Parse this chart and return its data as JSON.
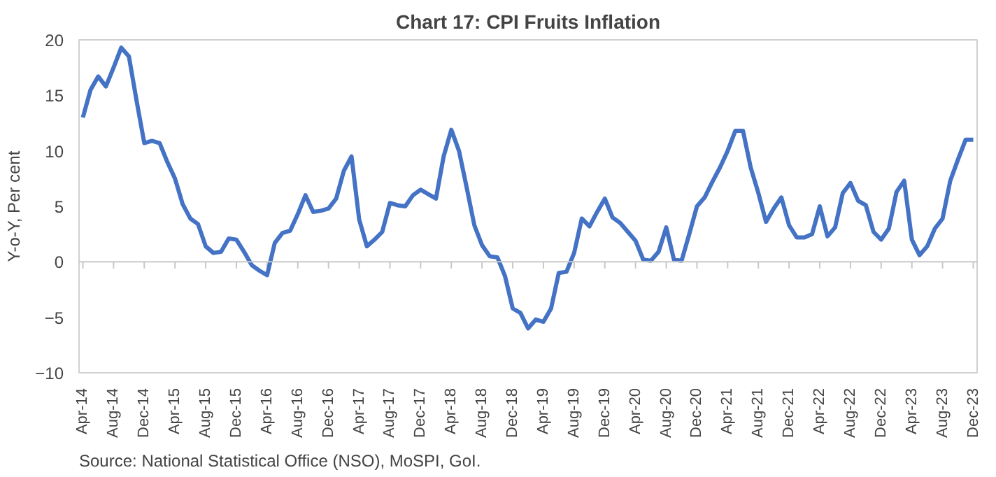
{
  "chart_data": {
    "type": "line",
    "title": "Chart 17: CPI Fruits Inflation",
    "ylabel": "Y-o-Y, Per cent",
    "categories": [
      "Apr-14",
      null,
      null,
      null,
      "Aug-14",
      null,
      null,
      null,
      "Dec-14",
      null,
      null,
      null,
      "Apr-15",
      null,
      null,
      null,
      "Aug-15",
      null,
      null,
      null,
      "Dec-15",
      null,
      null,
      null,
      "Apr-16",
      null,
      null,
      null,
      "Aug-16",
      null,
      null,
      null,
      "Dec-16",
      null,
      null,
      null,
      "Apr-17",
      null,
      null,
      null,
      "Aug-17",
      null,
      null,
      null,
      "Dec-17",
      null,
      null,
      null,
      "Apr-18",
      null,
      null,
      null,
      "Aug-18",
      null,
      null,
      null,
      "Dec-18",
      null,
      null,
      null,
      "Apr-19",
      null,
      null,
      null,
      "Aug-19",
      null,
      null,
      null,
      "Dec-19",
      null,
      null,
      null,
      "Apr-20",
      null,
      null,
      null,
      "Aug-20",
      null,
      null,
      null,
      "Dec-20",
      null,
      null,
      null,
      "Apr-21",
      null,
      null,
      null,
      "Aug-21",
      null,
      null,
      null,
      "Dec-21",
      null,
      null,
      null,
      "Apr-22",
      null,
      null,
      null,
      "Aug-22",
      null,
      null,
      null,
      "Dec-22",
      null,
      null,
      null,
      "Apr-23",
      null,
      null,
      null,
      "Aug-23",
      null,
      null,
      null,
      "Dec-23"
    ],
    "series": [
      {
        "color": "#4472c4",
        "values": [
          13,
          15.5,
          16.7,
          15.8,
          17.5,
          19.3,
          18.5,
          14.5,
          10.7,
          10.9,
          10.7,
          9,
          7.5,
          5.2,
          3.9,
          3.4,
          1.4,
          0.8,
          0.9,
          2.1,
          2.0,
          0.9,
          -0.3,
          -0.8,
          -1.2,
          1.7,
          2.6,
          2.8,
          4.3,
          6.0,
          4.5,
          4.6,
          4.8,
          5.7,
          8.2,
          9.5,
          3.8,
          1.4,
          2.0,
          2.7,
          5.3,
          5.1,
          5.0,
          6.0,
          6.5,
          6.1,
          5.7,
          9.5,
          11.9,
          10,
          6.7,
          3.3,
          1.5,
          0.5,
          0.4,
          -1.3,
          -4.2,
          -4.6,
          -6,
          -5.2,
          -5.4,
          -4.2,
          -1,
          -0.9,
          0.8,
          3.9,
          3.2,
          4.5,
          5.7,
          4.0,
          3.5,
          2.7,
          1.9,
          0.2,
          0.1,
          0.9,
          3.1,
          0.2,
          0.1,
          2.5,
          5,
          5.8,
          7.2,
          8.5,
          10,
          11.8,
          11.8,
          8.5,
          6.2,
          3.6,
          4.8,
          5.8,
          3.3,
          2.2,
          2.2,
          2.5,
          5,
          2.3,
          3.1,
          6.2,
          7.1,
          5.5,
          5.1,
          2.7,
          2.0,
          3.0,
          6.3,
          7.3,
          2.0,
          0.6,
          1.4,
          3.0,
          3.9,
          7.3,
          9.2,
          11,
          11
        ]
      }
    ],
    "ylim": [
      -10,
      20
    ],
    "yticks": [
      -10,
      -5,
      0,
      5,
      10,
      15,
      20
    ],
    "marker": "none",
    "line_style": "solid",
    "annotations": [
      "Source: National Statistical Office (NSO), MoSPI, GoI."
    ]
  }
}
